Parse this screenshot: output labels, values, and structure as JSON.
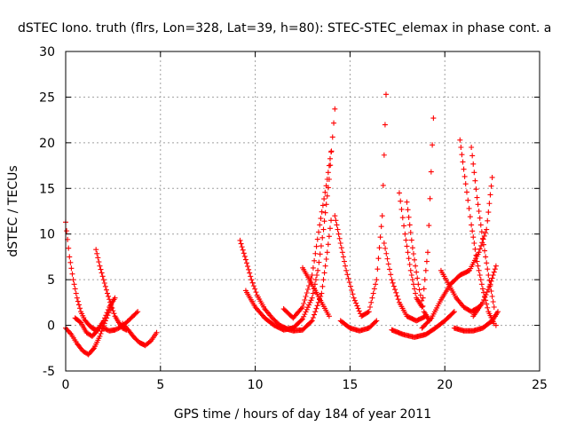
{
  "chart_data": {
    "type": "scatter",
    "title": "dSTEC Iono. truth (flrs, Lon=328, Lat=39, h=80): STEC-STEC_elemax in phase cont. a",
    "xlabel": "GPS time / hours of day 184 of year 2011",
    "ylabel": "dSTEC  / TECUs",
    "xlim": [
      0,
      25
    ],
    "ylim": [
      -5,
      30
    ],
    "x_ticks": [
      0,
      5,
      10,
      15,
      20,
      25
    ],
    "y_ticks": [
      -5,
      0,
      5,
      10,
      15,
      20,
      25,
      30
    ],
    "x_tick_labels": [
      "0",
      "5",
      "10",
      "15",
      "20",
      "25"
    ],
    "y_tick_labels": [
      "-5",
      "0",
      "5",
      "10",
      "15",
      "20",
      "25",
      "30"
    ],
    "grid": true,
    "marker": "+",
    "color": "#ff0000",
    "series": [
      {
        "x": [
          0.0,
          0.2,
          0.4,
          0.6,
          0.8,
          1.0,
          1.2,
          1.4,
          1.6,
          1.8
        ],
        "y": [
          11.3,
          7.5,
          5.0,
          3.0,
          1.5,
          0.6,
          0.1,
          -0.3,
          -0.5,
          -0.3
        ]
      },
      {
        "x": [
          0.0,
          0.3,
          0.6,
          0.9,
          1.2,
          1.5,
          1.8,
          2.1,
          2.4
        ],
        "y": [
          -0.3,
          -1.0,
          -2.0,
          -2.8,
          -3.2,
          -2.5,
          -1.2,
          0.5,
          2.0
        ]
      },
      {
        "x": [
          0.5,
          0.8,
          1.1,
          1.4,
          1.7,
          2.0,
          2.3,
          2.6
        ],
        "y": [
          0.8,
          0.3,
          -0.8,
          -1.2,
          -0.5,
          0.5,
          2.0,
          3.0
        ]
      },
      {
        "x": [
          1.6,
          1.8,
          2.0,
          2.2,
          2.4,
          2.6,
          2.8,
          3.0,
          3.2
        ],
        "y": [
          8.3,
          6.5,
          5.0,
          3.5,
          2.2,
          1.0,
          0.3,
          -0.3,
          -0.5
        ]
      },
      {
        "x": [
          2.0,
          2.3,
          2.6,
          2.9,
          3.2,
          3.5,
          3.8
        ],
        "y": [
          -0.3,
          -0.6,
          -0.5,
          -0.2,
          0.3,
          0.9,
          1.5
        ]
      },
      {
        "x": [
          3.0,
          3.3,
          3.6,
          3.9,
          4.2,
          4.5,
          4.8
        ],
        "y": [
          0.2,
          -0.5,
          -1.3,
          -1.9,
          -2.2,
          -1.7,
          -0.8
        ]
      },
      {
        "x": [
          9.2,
          9.5,
          9.8,
          10.1,
          10.5,
          10.9,
          11.3,
          11.7,
          12.0
        ],
        "y": [
          9.3,
          7.2,
          5.0,
          3.3,
          1.8,
          0.8,
          0.0,
          -0.4,
          -0.3
        ]
      },
      {
        "x": [
          9.5,
          10.0,
          10.5,
          11.0,
          11.5,
          12.0,
          12.5,
          13.0,
          13.3,
          13.6,
          13.9,
          14.2
        ],
        "y": [
          3.8,
          2.0,
          0.8,
          0.0,
          -0.5,
          -0.3,
          0.7,
          3.0,
          6.0,
          10.5,
          16.0,
          23.7
        ]
      },
      {
        "x": [
          11.5,
          12.0,
          12.5,
          13.0,
          13.5,
          13.8,
          14.0
        ],
        "y": [
          -0.3,
          -0.6,
          -0.5,
          0.5,
          3.5,
          8.0,
          11.5
        ]
      },
      {
        "x": [
          11.5,
          12.0,
          12.5,
          13.0,
          13.4,
          13.8,
          14.0
        ],
        "y": [
          1.8,
          0.8,
          2.0,
          5.5,
          11.0,
          16.0,
          19.0
        ]
      },
      {
        "x": [
          12.5,
          13.0,
          13.5,
          13.9
        ],
        "y": [
          6.3,
          4.5,
          2.5,
          1.0
        ]
      },
      {
        "x": [
          14.2,
          14.5,
          14.8,
          15.2,
          15.6,
          16.0,
          16.4,
          16.7,
          16.9
        ],
        "y": [
          12.0,
          9.0,
          6.0,
          3.0,
          1.0,
          1.5,
          5.0,
          12.0,
          25.3
        ]
      },
      {
        "x": [
          14.5,
          15.0,
          15.5,
          16.0,
          16.4
        ],
        "y": [
          0.5,
          -0.3,
          -0.6,
          -0.3,
          0.5
        ]
      },
      {
        "x": [
          16.8,
          17.2,
          17.6,
          18.0,
          18.5,
          19.0
        ],
        "y": [
          9.0,
          5.0,
          2.5,
          1.0,
          0.5,
          1.0
        ]
      },
      {
        "x": [
          17.2,
          17.8,
          18.4,
          19.0,
          19.5,
          20.0,
          20.5
        ],
        "y": [
          -0.5,
          -1.0,
          -1.3,
          -1.0,
          -0.3,
          0.5,
          1.5
        ]
      },
      {
        "x": [
          17.6,
          17.9,
          18.2,
          18.5,
          18.8,
          19.1,
          19.4
        ],
        "y": [
          14.5,
          10.0,
          6.0,
          3.0,
          2.0,
          8.0,
          22.7
        ]
      },
      {
        "x": [
          18.0,
          18.3,
          18.6,
          18.9,
          19.2
        ],
        "y": [
          13.5,
          8.5,
          4.5,
          1.5,
          0.5
        ]
      },
      {
        "x": [
          18.8,
          19.3,
          19.8,
          20.3,
          20.8,
          21.3,
          21.8,
          22.2,
          22.5
        ],
        "y": [
          -0.3,
          0.8,
          2.8,
          4.5,
          5.5,
          6.0,
          8.0,
          10.5,
          16.2
        ]
      },
      {
        "x": [
          19.8,
          20.2,
          20.6,
          21.0,
          21.4,
          21.8
        ],
        "y": [
          6.0,
          4.5,
          3.0,
          2.0,
          1.5,
          2.0
        ]
      },
      {
        "x": [
          20.8,
          21.1,
          21.4,
          21.7,
          22.0,
          22.3,
          22.6
        ],
        "y": [
          20.3,
          15.5,
          11.0,
          7.0,
          4.0,
          1.5,
          0.2
        ]
      },
      {
        "x": [
          21.4,
          21.7,
          22.0,
          22.3,
          22.6,
          22.7
        ],
        "y": [
          19.5,
          14.0,
          9.5,
          5.5,
          2.0,
          0.0
        ]
      },
      {
        "x": [
          20.5,
          21.0,
          21.5,
          22.0,
          22.5,
          22.8
        ],
        "y": [
          -0.3,
          -0.6,
          -0.6,
          -0.3,
          0.5,
          1.5
        ]
      },
      {
        "x": [
          21.5,
          22.0,
          22.4,
          22.7
        ],
        "y": [
          1.0,
          2.5,
          4.5,
          6.5
        ]
      }
    ]
  }
}
